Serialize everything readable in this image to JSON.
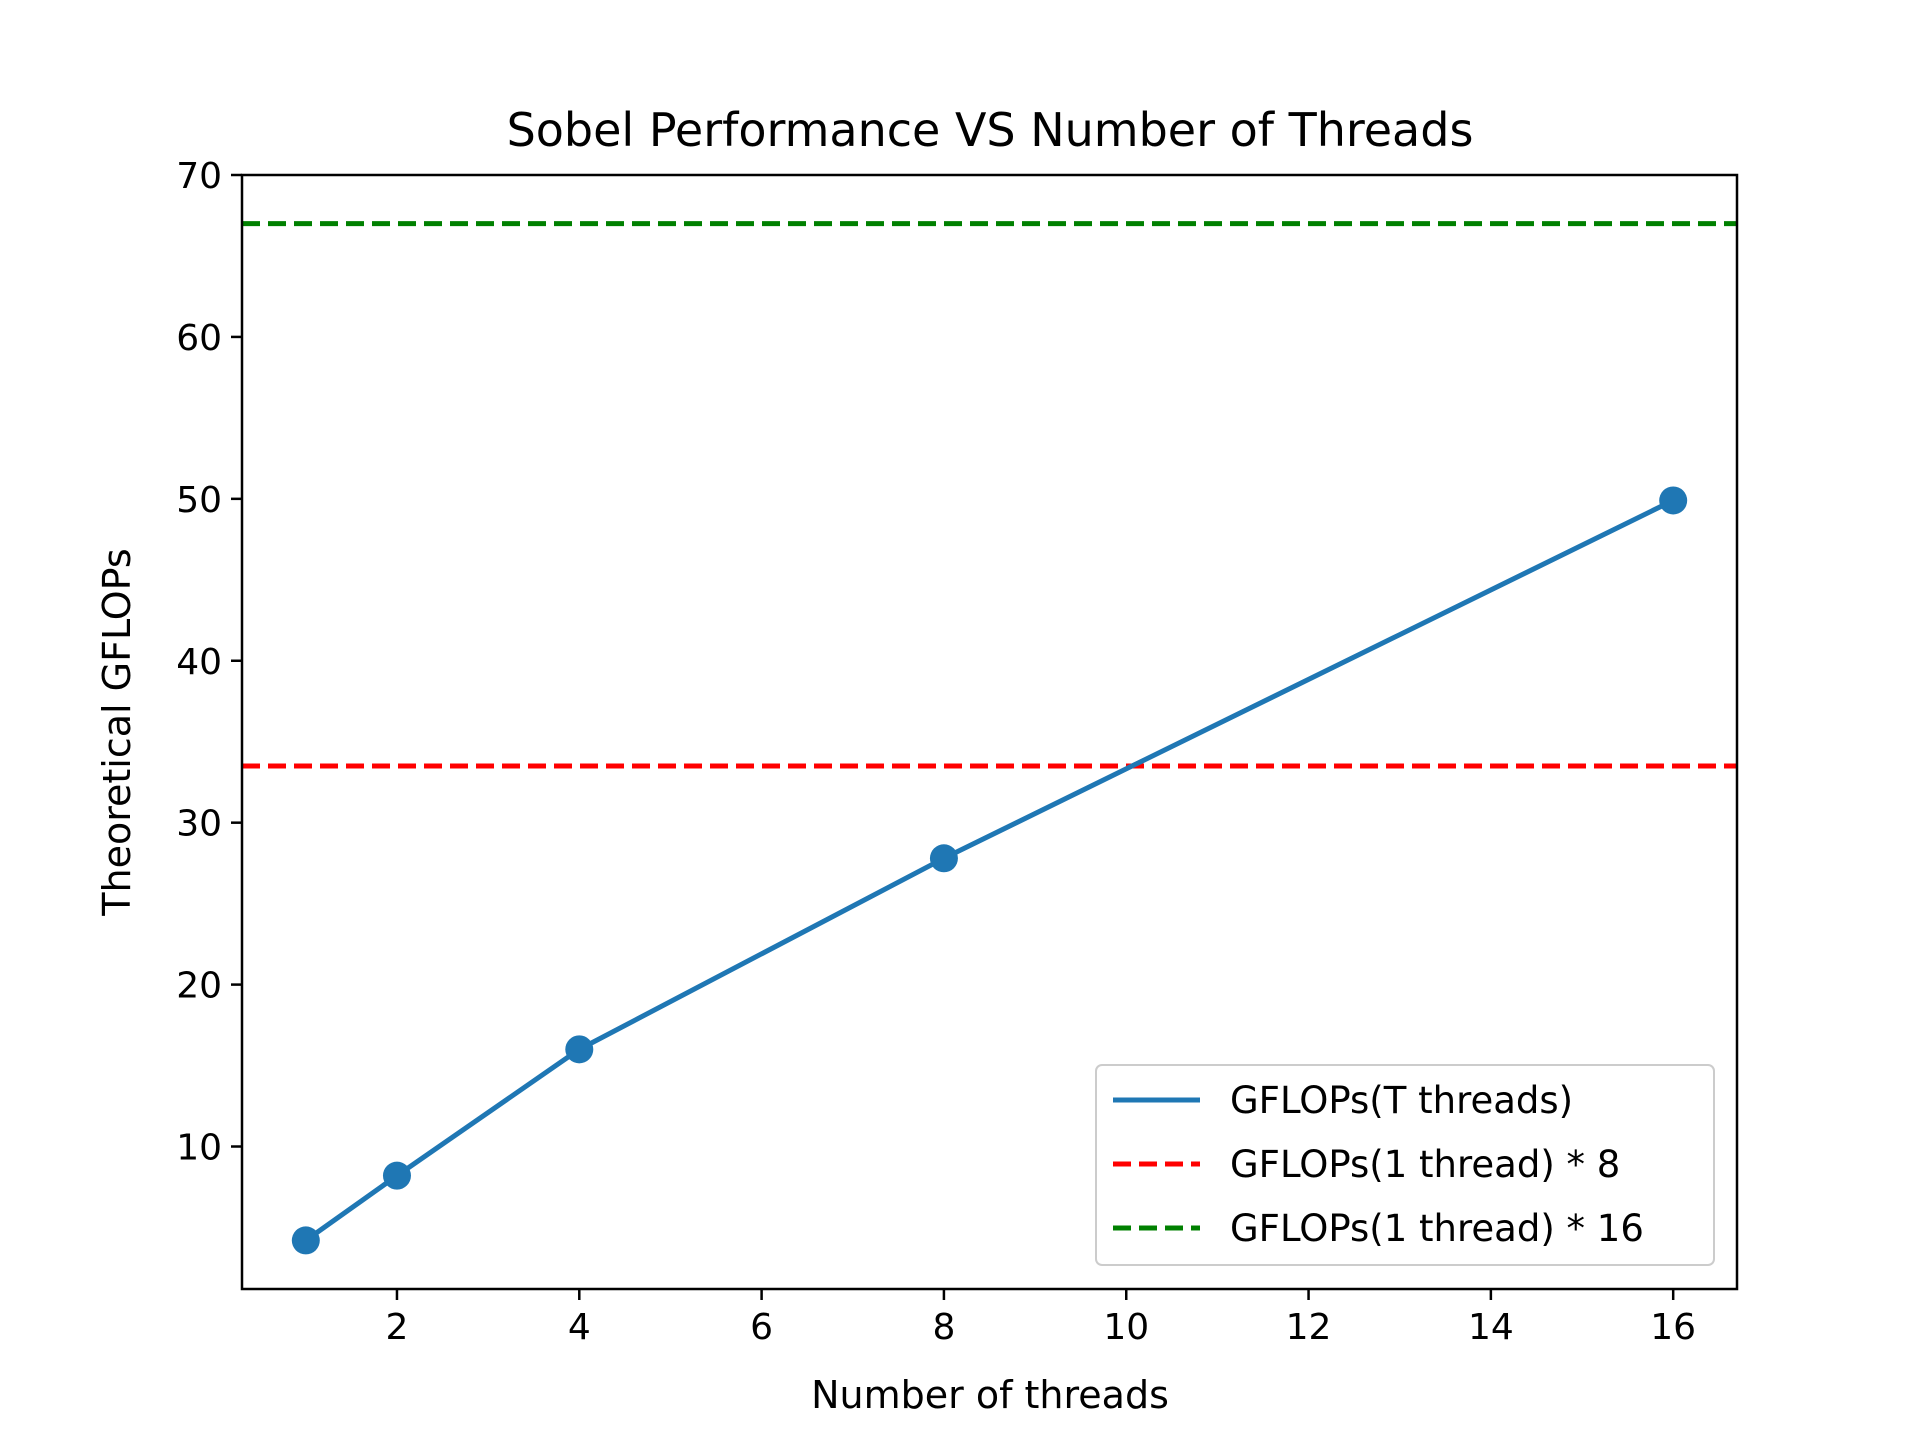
{
  "chart_data": {
    "type": "line",
    "title": "Sobel Performance VS Number of Threads",
    "xlabel": "Number of threads",
    "ylabel": "Theoretical GFLOPs",
    "xlim": [
      0.3,
      16.7
    ],
    "ylim": [
      1.2,
      70
    ],
    "xticks": [
      2,
      4,
      6,
      8,
      10,
      12,
      14,
      16
    ],
    "yticks": [
      10,
      20,
      30,
      40,
      50,
      60,
      70
    ],
    "grid": false,
    "legend_position": "lower-right",
    "series": [
      {
        "name": "GFLOPs(T threads)",
        "style": "solid-with-markers",
        "color": "#1f77b4",
        "x": [
          1,
          2,
          4,
          8,
          16
        ],
        "y": [
          4.2,
          8.2,
          16.0,
          27.8,
          49.9
        ]
      }
    ],
    "hlines": [
      {
        "name": "GFLOPs(1 thread) * 8",
        "style": "dashed",
        "color": "#ff0000",
        "y": 33.5
      },
      {
        "name": "GFLOPs(1 thread) * 16",
        "style": "dashed",
        "color": "#008000",
        "y": 67.0
      }
    ]
  }
}
